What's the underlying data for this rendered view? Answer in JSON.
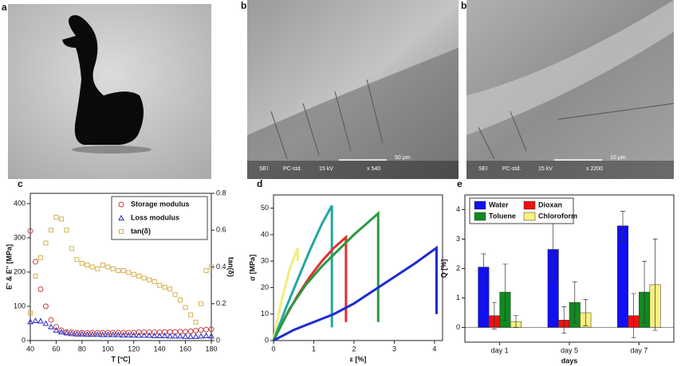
{
  "panels": {
    "labels": [
      "a",
      "b",
      "b",
      "c",
      "d",
      "e"
    ],
    "sem": [
      {
        "scale": "50 µm",
        "info": [
          "SEI",
          "PC-std.",
          "15 kV",
          "x 540"
        ]
      },
      {
        "scale": "10 µm",
        "info": [
          "SEI",
          "PC-std.",
          "15 kV",
          "x 2200"
        ]
      }
    ]
  },
  "chart_data": [
    {
      "type": "scatter",
      "xlabel": "T [°C]",
      "ylabel": "E' & E'' [MPa]",
      "y2label": "tan(δ)",
      "x": [
        40,
        44,
        48,
        52,
        56,
        60,
        64,
        68,
        72,
        76,
        80,
        84,
        88,
        92,
        96,
        100,
        104,
        108,
        112,
        116,
        120,
        124,
        128,
        132,
        136,
        140,
        144,
        148,
        152,
        156,
        160,
        164,
        168,
        172,
        176,
        180
      ],
      "xlim": [
        40,
        180
      ],
      "xticks": [
        40,
        60,
        80,
        100,
        120,
        140,
        160,
        180
      ],
      "ylim": [
        0,
        430
      ],
      "yticks": [
        0,
        100,
        200,
        300,
        400
      ],
      "y2lim": [
        0,
        0.8
      ],
      "y2ticks": [
        0.0,
        0.2,
        0.4,
        0.6,
        0.8
      ],
      "legend": "upper right",
      "series": [
        {
          "name": "Storage modulus",
          "color": "#c43c3c",
          "marker": "circle",
          "values": [
            320,
            230,
            150,
            100,
            60,
            40,
            30,
            25,
            24,
            23,
            23,
            23,
            23,
            23,
            23,
            23,
            23,
            23,
            23,
            23,
            23,
            24,
            24,
            24,
            24,
            24,
            25,
            25,
            25,
            26,
            26,
            27,
            29,
            31,
            32,
            33
          ]
        },
        {
          "name": "Loss modulus",
          "color": "#2c2cc0",
          "marker": "triangle",
          "values": [
            55,
            58,
            57,
            50,
            40,
            30,
            25,
            22,
            20,
            19,
            19,
            18,
            18,
            18,
            17,
            17,
            17,
            17,
            16,
            16,
            16,
            15,
            15,
            15,
            14,
            14,
            14,
            13,
            13,
            13,
            12,
            12,
            12,
            13,
            14,
            13
          ]
        },
        {
          "name": "tan(δ)",
          "color": "#d4b050",
          "marker": "square",
          "axis": "y2",
          "values": [
            0.15,
            0.35,
            0.45,
            0.53,
            0.6,
            0.67,
            0.66,
            0.6,
            0.5,
            0.44,
            0.42,
            0.41,
            0.4,
            0.39,
            0.41,
            0.4,
            0.39,
            0.38,
            0.38,
            0.37,
            0.36,
            0.35,
            0.34,
            0.33,
            0.32,
            0.3,
            0.29,
            0.28,
            0.25,
            0.22,
            0.18,
            0.14,
            0.1,
            0.2,
            0.38,
            0.4
          ]
        }
      ]
    },
    {
      "type": "line",
      "xlabel": "ε [%]",
      "ylabel": "σ [MPa]",
      "xlim": [
        0,
        4.2
      ],
      "xticks": [
        0,
        1,
        2,
        3,
        4
      ],
      "ylim": [
        0,
        55
      ],
      "yticks": [
        0,
        10,
        20,
        30,
        40,
        50
      ],
      "series": [
        {
          "color": "#f0ee80",
          "x": [
            0,
            0.1,
            0.2,
            0.3,
            0.4,
            0.5,
            0.6,
            0.6
          ],
          "values": [
            0,
            8,
            15,
            21,
            27,
            31,
            35,
            30
          ]
        },
        {
          "color": "#22a8a0",
          "x": [
            0,
            0.3,
            0.6,
            0.9,
            1.2,
            1.45,
            1.45
          ],
          "values": [
            0,
            12,
            23,
            34,
            44,
            51,
            5
          ]
        },
        {
          "color": "#e03030",
          "x": [
            0,
            0.3,
            0.6,
            0.9,
            1.2,
            1.5,
            1.8,
            1.8
          ],
          "values": [
            0,
            9,
            17,
            24,
            30,
            35,
            39,
            7
          ]
        },
        {
          "color": "#2a9a40",
          "x": [
            0,
            0.4,
            0.8,
            1.2,
            1.6,
            2.0,
            2.3,
            2.6,
            2.6
          ],
          "values": [
            0,
            12,
            21,
            28,
            34,
            40,
            44,
            48,
            7
          ]
        },
        {
          "color": "#1e2bd0",
          "x": [
            0,
            0.5,
            1.0,
            1.5,
            2.0,
            2.5,
            3.0,
            3.5,
            4.05,
            4.05
          ],
          "values": [
            0,
            4,
            7,
            10,
            14,
            19,
            24,
            29,
            35,
            10
          ]
        }
      ]
    },
    {
      "type": "bar",
      "xlabel": "days",
      "ylabel": "Q [%]",
      "categories": [
        "day 1",
        "day 5",
        "day 7"
      ],
      "ylim": [
        -0.5,
        4.5
      ],
      "yticks": [
        0,
        1,
        2,
        3,
        4
      ],
      "legend": "upper left",
      "series": [
        {
          "name": "Water",
          "color": "#1010f0",
          "values": [
            2.05,
            2.65,
            3.45
          ],
          "errors": [
            0.45,
            1.05,
            0.5
          ]
        },
        {
          "name": "Dioxan",
          "color": "#f01010",
          "values": [
            0.4,
            0.25,
            0.4
          ],
          "errors": [
            0.45,
            0.45,
            0.75
          ]
        },
        {
          "name": "Toluene",
          "color": "#108a20",
          "values": [
            1.2,
            0.85,
            1.2
          ],
          "errors": [
            0.95,
            0.7,
            1.05
          ]
        },
        {
          "name": "Chloroform",
          "color": "#f8f080",
          "values": [
            0.2,
            0.5,
            1.45
          ],
          "errors": [
            0.2,
            0.45,
            1.55
          ]
        }
      ]
    }
  ]
}
